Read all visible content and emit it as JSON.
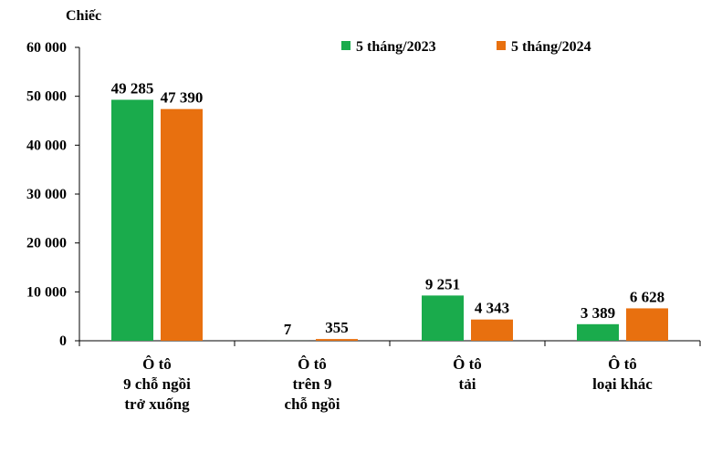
{
  "chart_data": {
    "type": "bar",
    "unit_label": "Chiếc",
    "categories": [
      [
        "Ô tô",
        "9 chỗ ngồi",
        "trở xuống"
      ],
      [
        "Ô tô",
        "trên 9",
        "chỗ ngồi"
      ],
      [
        "Ô tô",
        "tải"
      ],
      [
        "Ô tô",
        "loại khác"
      ]
    ],
    "series": [
      {
        "name": "5 tháng/2023",
        "color": "#1aab4c",
        "values": [
          49285,
          7,
          9251,
          3389
        ],
        "labels": [
          "49 285",
          "7",
          "9 251",
          "3 389"
        ]
      },
      {
        "name": "5 tháng/2024",
        "color": "#e8700f",
        "values": [
          47390,
          355,
          4343,
          6628
        ],
        "labels": [
          "47 390",
          "355",
          "4 343",
          "6 628"
        ]
      }
    ],
    "ylim": [
      0,
      60000
    ],
    "yticks": [
      0,
      10000,
      20000,
      30000,
      40000,
      50000,
      60000
    ],
    "ytick_labels": [
      "0",
      "10 000",
      "20 000",
      "30 000",
      "40 000",
      "50 000",
      "60 000"
    ],
    "grid": false,
    "legend_position": "top-right"
  }
}
